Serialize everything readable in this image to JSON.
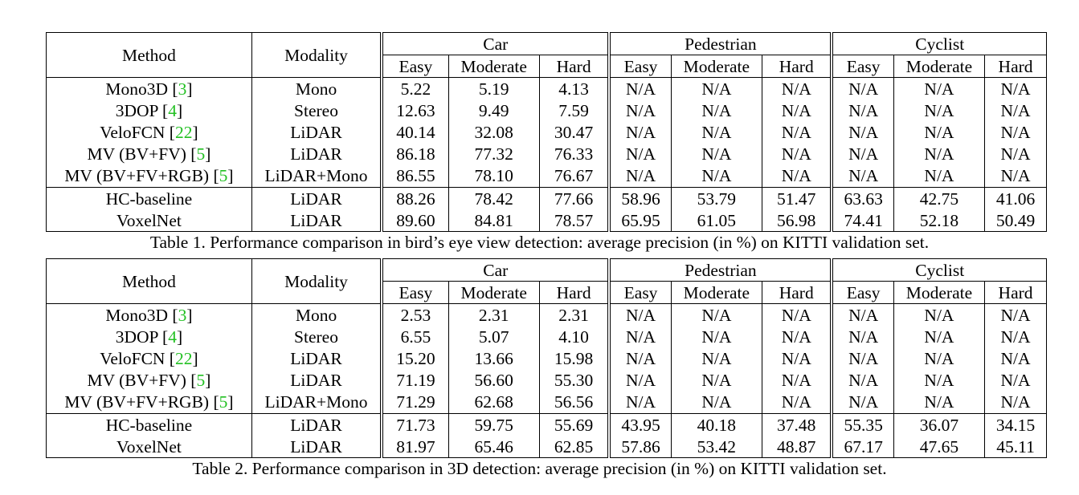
{
  "columns": {
    "method": "Method",
    "modality": "Modality",
    "groups": [
      "Car",
      "Pedestrian",
      "Cyclist"
    ],
    "levels": [
      "Easy",
      "Moderate",
      "Hard"
    ]
  },
  "tables": [
    {
      "caption": "Table 1. Performance comparison in bird’s eye view detection: average precision (in %) on KITTI validation set.",
      "rows": [
        {
          "method": "Mono3D [",
          "cite": "3",
          "close": "]",
          "modality": "Mono",
          "vals": [
            "5.22",
            "5.19",
            "4.13",
            "N/A",
            "N/A",
            "N/A",
            "N/A",
            "N/A",
            "N/A"
          ],
          "bold": false
        },
        {
          "method": "3DOP [",
          "cite": "4",
          "close": "]",
          "modality": "Stereo",
          "vals": [
            "12.63",
            "9.49",
            "7.59",
            "N/A",
            "N/A",
            "N/A",
            "N/A",
            "N/A",
            "N/A"
          ],
          "bold": false
        },
        {
          "method": "VeloFCN [",
          "cite": "22",
          "close": "]",
          "modality": "LiDAR",
          "vals": [
            "40.14",
            "32.08",
            "30.47",
            "N/A",
            "N/A",
            "N/A",
            "N/A",
            "N/A",
            "N/A"
          ],
          "bold": false
        },
        {
          "method": "MV (BV+FV) [",
          "cite": "5",
          "close": "]",
          "modality": "LiDAR",
          "vals": [
            "86.18",
            "77.32",
            "76.33",
            "N/A",
            "N/A",
            "N/A",
            "N/A",
            "N/A",
            "N/A"
          ],
          "bold": false
        },
        {
          "method": "MV (BV+FV+RGB) [",
          "cite": "5",
          "close": "]",
          "modality": "LiDAR+Mono",
          "vals": [
            "86.55",
            "78.10",
            "76.67",
            "N/A",
            "N/A",
            "N/A",
            "N/A",
            "N/A",
            "N/A"
          ],
          "bold": false
        },
        {
          "method": "HC-baseline",
          "cite": "",
          "close": "",
          "modality": "LiDAR",
          "vals": [
            "88.26",
            "78.42",
            "77.66",
            "58.96",
            "53.79",
            "51.47",
            "63.63",
            "42.75",
            "41.06"
          ],
          "bold": false
        },
        {
          "method": "VoxelNet",
          "cite": "",
          "close": "",
          "modality": "LiDAR",
          "vals": [
            "89.60",
            "84.81",
            "78.57",
            "65.95",
            "61.05",
            "56.98",
            "74.41",
            "52.18",
            "50.49"
          ],
          "bold": true
        }
      ]
    },
    {
      "caption": "Table 2. Performance comparison in 3D detection: average precision (in %) on KITTI validation set.",
      "rows": [
        {
          "method": "Mono3D [",
          "cite": "3",
          "close": "]",
          "modality": "Mono",
          "vals": [
            "2.53",
            "2.31",
            "2.31",
            "N/A",
            "N/A",
            "N/A",
            "N/A",
            "N/A",
            "N/A"
          ],
          "bold": false
        },
        {
          "method": "3DOP [",
          "cite": "4",
          "close": "]",
          "modality": "Stereo",
          "vals": [
            "6.55",
            "5.07",
            "4.10",
            "N/A",
            "N/A",
            "N/A",
            "N/A",
            "N/A",
            "N/A"
          ],
          "bold": false
        },
        {
          "method": "VeloFCN [",
          "cite": "22",
          "close": "]",
          "modality": "LiDAR",
          "vals": [
            "15.20",
            "13.66",
            "15.98",
            "N/A",
            "N/A",
            "N/A",
            "N/A",
            "N/A",
            "N/A"
          ],
          "bold": false
        },
        {
          "method": "MV (BV+FV) [",
          "cite": "5",
          "close": "]",
          "modality": "LiDAR",
          "vals": [
            "71.19",
            "56.60",
            "55.30",
            "N/A",
            "N/A",
            "N/A",
            "N/A",
            "N/A",
            "N/A"
          ],
          "bold": false
        },
        {
          "method": "MV (BV+FV+RGB) [",
          "cite": "5",
          "close": "]",
          "modality": "LiDAR+Mono",
          "vals": [
            "71.29",
            "62.68",
            "56.56",
            "N/A",
            "N/A",
            "N/A",
            "N/A",
            "N/A",
            "N/A"
          ],
          "bold": false
        },
        {
          "method": "HC-baseline",
          "cite": "",
          "close": "",
          "modality": "LiDAR",
          "vals": [
            "71.73",
            "59.75",
            "55.69",
            "43.95",
            "40.18",
            "37.48",
            "55.35",
            "36.07",
            "34.15"
          ],
          "bold": false
        },
        {
          "method": "VoxelNet",
          "cite": "",
          "close": "",
          "modality": "LiDAR",
          "vals": [
            "81.97",
            "65.46",
            "62.85",
            "57.86",
            "53.42",
            "48.87",
            "67.17",
            "47.65",
            "45.11"
          ],
          "bold": true
        }
      ]
    }
  ],
  "colors": {
    "citation": "#22c022",
    "text": "#000000"
  }
}
